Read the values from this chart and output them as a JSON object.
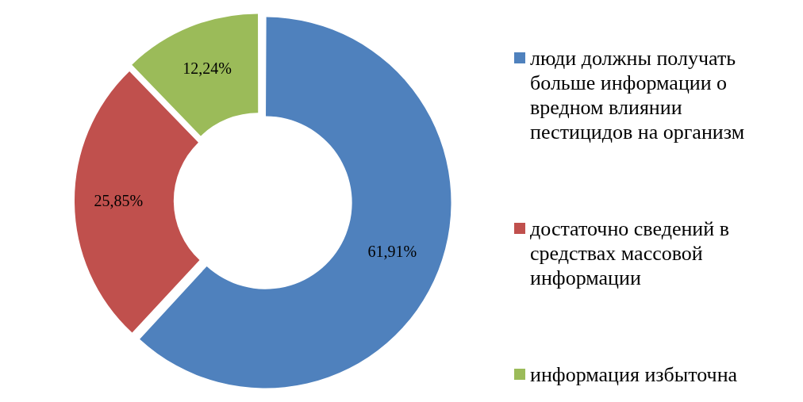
{
  "chart_data": {
    "type": "donut",
    "categories": [
      "люди должны получать больше информации о вредном влиянии пестицидов на организм",
      "достаточно сведений в средствах массовой информации",
      "информация избыточна"
    ],
    "values": [
      61.91,
      25.85,
      12.24
    ],
    "colors": [
      "#4f81bd",
      "#c0504d",
      "#9bbb59"
    ],
    "value_labels": [
      "61,91%",
      "25,85%",
      "12,24%"
    ],
    "legend": "right"
  }
}
